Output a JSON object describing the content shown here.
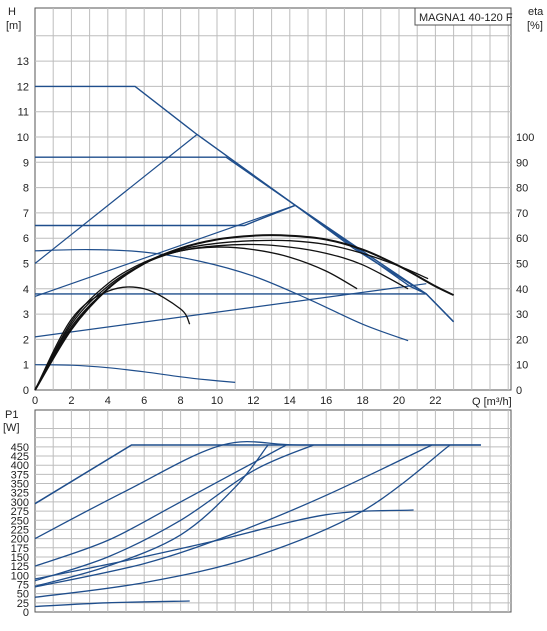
{
  "chart_data": [
    {
      "type": "line",
      "title": "MAGNA1 40-120 F",
      "xlabel": "Q [m³/h]",
      "ylabel_left_top": "H",
      "ylabel_left_unit": "[m]",
      "ylabel_right_top": "eta",
      "ylabel_right_unit": "[%]",
      "xlim": [
        0,
        26
      ],
      "ylim_left": [
        0,
        14
      ],
      "ylim_right": [
        0,
        140
      ],
      "x_ticks": [
        "0",
        "2",
        "4",
        "6",
        "8",
        "10",
        "12",
        "14",
        "16",
        "18",
        "20",
        "22"
      ],
      "y_ticks_left": [
        "0",
        "1",
        "2",
        "3",
        "4",
        "5",
        "6",
        "7",
        "8",
        "9",
        "10",
        "11",
        "12",
        "13"
      ],
      "y_ticks_right": [
        "0",
        "10",
        "20",
        "30",
        "40",
        "50",
        "60",
        "70",
        "80",
        "90",
        "100"
      ],
      "grid": true,
      "pump_curves_head": [
        {
          "x": [
            0,
            5.5,
            8.9,
            14.3,
            20.6,
            21.5,
            23.0
          ],
          "y": [
            12.0,
            12.0,
            10.1,
            7.3,
            4.1,
            3.8,
            2.7
          ]
        },
        {
          "x": [
            0,
            10.5,
            14.3,
            17.5,
            21.5
          ],
          "y": [
            9.2,
            9.2,
            7.3,
            5.6,
            3.8
          ]
        },
        {
          "x": [
            0,
            11.5,
            14.3,
            19.0,
            21.5
          ],
          "y": [
            6.5,
            6.5,
            7.3,
            5.0,
            3.8
          ]
        },
        {
          "x": [
            0,
            21.5,
            23.0
          ],
          "y": [
            3.8,
            3.8,
            2.7
          ]
        }
      ],
      "proportional_lines": [
        {
          "x": [
            0,
            8.9
          ],
          "y": [
            5.0,
            10.1
          ]
        },
        {
          "x": [
            0,
            14.3
          ],
          "y": [
            3.7,
            7.3
          ]
        },
        {
          "x": [
            0,
            21.5
          ],
          "y": [
            2.1,
            4.2
          ]
        }
      ],
      "constant_head_curves": [
        {
          "x": [
            0,
            3,
            6,
            9,
            12,
            15,
            18,
            20.5
          ],
          "y": [
            5.5,
            5.55,
            5.45,
            5.1,
            4.5,
            3.6,
            2.6,
            1.95
          ]
        },
        {
          "x": [
            0,
            2,
            4,
            6,
            8,
            9.5,
            11
          ],
          "y": [
            1.0,
            0.98,
            0.88,
            0.72,
            0.52,
            0.4,
            0.3
          ]
        }
      ],
      "efficiency_curves": [
        {
          "x": [
            0,
            2,
            4,
            6,
            8,
            10,
            12,
            14,
            16,
            18,
            20,
            22,
            23.0
          ],
          "y": [
            0,
            24,
            40,
            50,
            56,
            59.5,
            61,
            61,
            59.5,
            55.5,
            49,
            41,
            37.5
          ]
        },
        {
          "x": [
            0,
            2,
            4,
            6,
            8,
            10,
            12,
            14,
            16,
            18,
            20,
            21.6
          ],
          "y": [
            0,
            25,
            40,
            50,
            55.5,
            58,
            59,
            59,
            57.5,
            54,
            49,
            44
          ]
        },
        {
          "x": [
            0,
            2,
            4,
            6,
            8,
            10,
            12,
            14,
            16,
            18,
            20.5
          ],
          "y": [
            0,
            26,
            41,
            50,
            55,
            57,
            57.5,
            56.5,
            54,
            49.5,
            40
          ]
        },
        {
          "x": [
            0,
            2,
            4,
            6,
            8,
            10,
            12,
            14,
            16,
            17.7
          ],
          "y": [
            0,
            27,
            42,
            50.5,
            55,
            56.5,
            55.5,
            52.5,
            47,
            40
          ]
        },
        {
          "x": [
            0,
            2,
            4,
            6,
            8,
            8.5
          ],
          "y": [
            0,
            28,
            39,
            40,
            32,
            26
          ]
        }
      ]
    },
    {
      "type": "line",
      "ylabel_top": "P1",
      "ylabel_unit": "[W]",
      "xlim": [
        0,
        26
      ],
      "ylim": [
        0,
        500
      ],
      "y_ticks": [
        "0",
        "25",
        "50",
        "75",
        "100",
        "125",
        "150",
        "175",
        "200",
        "225",
        "250",
        "275",
        "300",
        "325",
        "350",
        "375",
        "400",
        "425",
        "450"
      ],
      "grid": true,
      "max_power": {
        "x": [
          0,
          5.3,
          24.5
        ],
        "y": [
          295,
          455,
          455
        ]
      },
      "power_curves": [
        {
          "x": [
            0,
            5,
            10.3,
            14.5,
            21,
            24.5
          ],
          "y": [
            200,
            330,
            455,
            455,
            455,
            455
          ]
        },
        {
          "x": [
            0,
            4,
            8,
            13.8
          ],
          "y": [
            125,
            195,
            300,
            455
          ]
        },
        {
          "x": [
            0,
            4,
            8,
            12,
            15.3
          ],
          "y": [
            85,
            150,
            250,
            385,
            455
          ]
        },
        {
          "x": [
            0,
            6,
            11,
            16,
            21.8
          ],
          "y": [
            68,
            132,
            215,
            318,
            455
          ]
        },
        {
          "x": [
            0,
            5,
            10,
            16,
            20.8
          ],
          "y": [
            90,
            140,
            195,
            265,
            278
          ]
        },
        {
          "x": [
            0,
            4,
            8,
            11,
            12.8
          ],
          "y": [
            70,
            125,
            210,
            340,
            455
          ]
        },
        {
          "x": [
            0,
            6,
            12,
            18,
            22.8
          ],
          "y": [
            40,
            80,
            150,
            275,
            455
          ]
        },
        {
          "x": [
            0,
            4,
            8.5
          ],
          "y": [
            15,
            25,
            30
          ]
        }
      ]
    }
  ]
}
